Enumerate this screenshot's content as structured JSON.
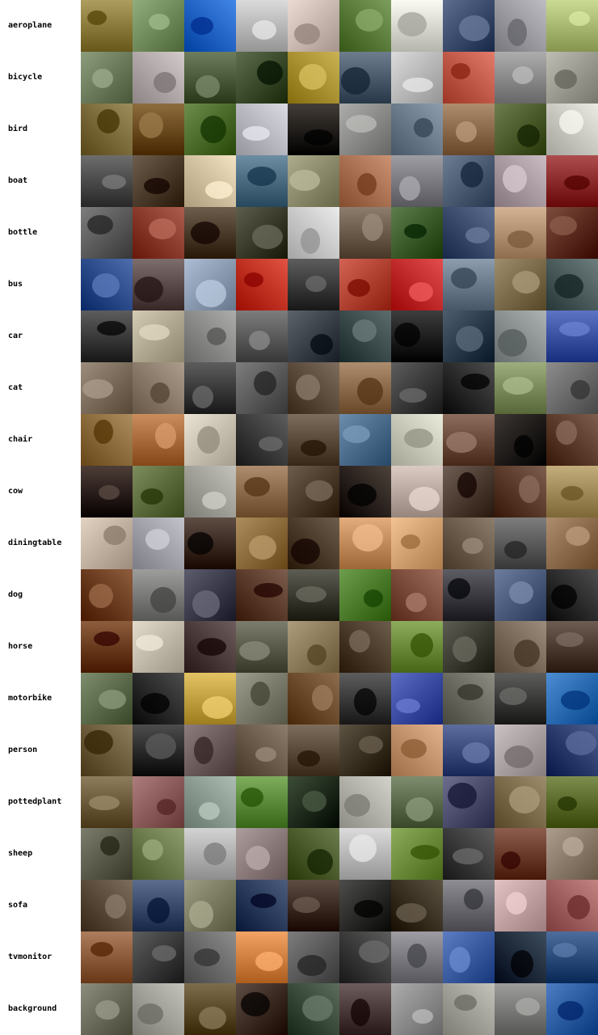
{
  "grid": {
    "columns_per_row": 10,
    "rows": [
      {
        "label": "aeroplane",
        "palette": [
          "#8a7a3c",
          "#6f8a5a",
          "#1f63c4",
          "#b8b8b8",
          "#c8b8b0",
          "#5a7a3a",
          "#d8d8d0",
          "#3a4a6a",
          "#9a9aa0",
          "#a8b870"
        ]
      },
      {
        "label": "bicycle",
        "palette": [
          "#6a7a5a",
          "#b0a8a8",
          "#4a5a3a",
          "#3a4a2a",
          "#a89030",
          "#4a5a6a",
          "#b8b8b8",
          "#c05848",
          "#8a8a8a",
          "#9a9a90"
        ]
      },
      {
        "label": "bird",
        "palette": [
          "#7a6a3a",
          "#6a4a1a",
          "#4a6a2a",
          "#b8b8c0",
          "#201a14",
          "#8a8a88",
          "#6a7a8a",
          "#8a6a4a",
          "#4a5a2a",
          "#c8c8c0"
        ]
      },
      {
        "label": "boat",
        "palette": [
          "#4a4a4a",
          "#4a3a2a",
          "#d0c0a0",
          "#4a6a80",
          "#8a8a6a",
          "#a87050",
          "#7a7a80",
          "#4a5a70",
          "#a898a0",
          "#8a2a2a"
        ]
      },
      {
        "label": "bottle",
        "palette": [
          "#5a5a5a",
          "#8a3a2a",
          "#4a3a2a",
          "#3a3a2a",
          "#c8c8c8",
          "#6a5a4a",
          "#3a5a2a",
          "#3a4a6a",
          "#b09070",
          "#5a2a1a"
        ]
      },
      {
        "label": "bus",
        "palette": [
          "#2a4a8a",
          "#5a4a4a",
          "#8a9ab0",
          "#c03020",
          "#3a3a3a",
          "#b04030",
          "#c02a2a",
          "#6a7a8a",
          "#7a6a4a",
          "#4a5a5a"
        ]
      },
      {
        "label": "car",
        "palette": [
          "#3a3a3a",
          "#b0a890",
          "#8a8a88",
          "#5a5a5a",
          "#3a4048",
          "#3a4a4a",
          "#1a1a1a",
          "#2a3a4a",
          "#8a9090",
          "#3a50a0"
        ]
      },
      {
        "label": "cat",
        "palette": [
          "#7a6a5a",
          "#8a7a6a",
          "#3a3a3a",
          "#5a5a5a",
          "#5a4a3a",
          "#8a6a4a",
          "#3a3a3a",
          "#2a2a2a",
          "#7a8a5a",
          "#6a6a6a"
        ]
      },
      {
        "label": "chair",
        "palette": [
          "#8a6a3a",
          "#a86a3a",
          "#c8c0b0",
          "#3a3a3a",
          "#5a4a3a",
          "#4a6a8a",
          "#c8c8b8",
          "#6a4a3a",
          "#1a1410",
          "#5a3a2a"
        ]
      },
      {
        "label": "cow",
        "palette": [
          "#2a1a14",
          "#5a6a3a",
          "#a0a098",
          "#8a6a4a",
          "#4a3a2a",
          "#2a2018",
          "#b8a8a0",
          "#4a3a30",
          "#5a3a2a",
          "#a08a5a"
        ]
      },
      {
        "label": "diningtable",
        "palette": [
          "#c0b0a0",
          "#a0a0a8",
          "#3a2a20",
          "#8a6a3a",
          "#4a3a2a",
          "#c08a5a",
          "#d0a070",
          "#6a5a4a",
          "#5a5a5a",
          "#8a6a4a"
        ]
      },
      {
        "label": "dog",
        "palette": [
          "#6a3a1a",
          "#7a7a78",
          "#3a3a4a",
          "#5a3a2a",
          "#3a3a30",
          "#4a7a2a",
          "#7a4a3a",
          "#3a3a40",
          "#4a5a7a",
          "#2a2a2a"
        ]
      },
      {
        "label": "horse",
        "palette": [
          "#6a3a1a",
          "#c0b8a8",
          "#4a3a3a",
          "#5a5a4a",
          "#8a7a5a",
          "#4a3a2a",
          "#6a8a3a",
          "#3a3a30",
          "#7a6a5a",
          "#4a3a30"
        ]
      },
      {
        "label": "motorbike",
        "palette": [
          "#5a6a4a",
          "#2a2a2a",
          "#c0a040",
          "#7a7a6a",
          "#6a4a2a",
          "#3a3a3a",
          "#3a4aa0",
          "#6a6a60",
          "#3a3a38",
          "#2a6ab0"
        ]
      },
      {
        "label": "person",
        "palette": [
          "#6a5a3a",
          "#2a2a2a",
          "#6a5a5a",
          "#6a5a4a",
          "#5a4a3a",
          "#3a3020",
          "#c0906a",
          "#3a4a7a",
          "#a8a0a0",
          "#2a3a6a"
        ]
      },
      {
        "label": "pottedplant",
        "palette": [
          "#6a5a3a",
          "#8a5a5a",
          "#8a9a90",
          "#5a8a3a",
          "#1a2a14",
          "#b0b0a8",
          "#5a6a4a",
          "#4a4a6a",
          "#7a6a4a",
          "#5a6a2a"
        ]
      },
      {
        "label": "sheep",
        "palette": [
          "#5a5a4a",
          "#6a7a4a",
          "#b0b0b0",
          "#8a7a7a",
          "#4a5a2a",
          "#b8b8b8",
          "#6a8a3a",
          "#3a3a3a",
          "#6a3a2a",
          "#8a7a6a"
        ]
      },
      {
        "label": "sofa",
        "palette": [
          "#5a4a3a",
          "#3a4a6a",
          "#7a7a60",
          "#2a3a5a",
          "#3a2a20",
          "#2a2a28",
          "#3a3020",
          "#6a6a70",
          "#c0a0a0",
          "#a06060"
        ]
      },
      {
        "label": "tvmonitor",
        "palette": [
          "#8a5a3a",
          "#3a3a3a",
          "#6a6a6a",
          "#d08040",
          "#5a5a5a",
          "#3a3a3a",
          "#7a7a80",
          "#3a5aa0",
          "#1a2a3a",
          "#2a4a7a"
        ]
      },
      {
        "label": "background",
        "palette": [
          "#6a6a5a",
          "#a0a098",
          "#5a4a2a",
          "#3a2a20",
          "#3a4a3a",
          "#4a3a3a",
          "#8a8a8a",
          "#a0a098",
          "#7a7a78",
          "#2a5aa0"
        ]
      }
    ]
  }
}
